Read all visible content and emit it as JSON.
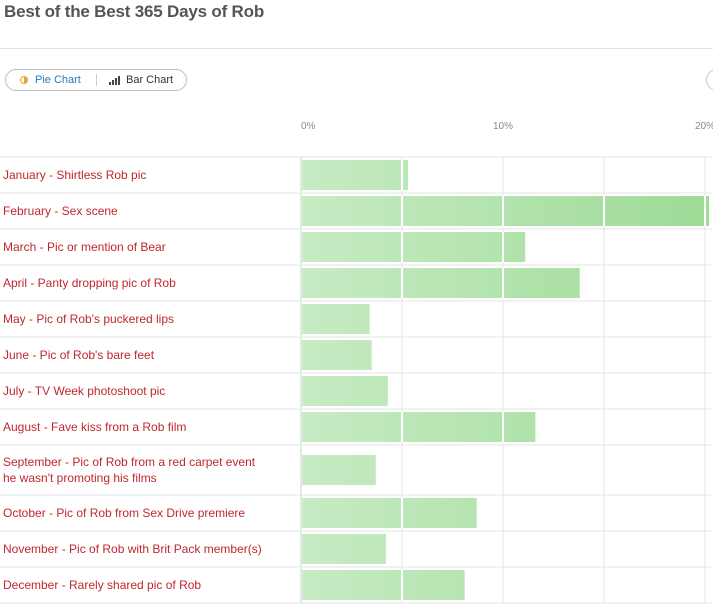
{
  "page": {
    "title": "Best of the Best 365 Days of Rob"
  },
  "toggle": {
    "pie_label": "Pie Chart",
    "bar_label": "Bar Chart"
  },
  "chart_data": {
    "type": "bar",
    "orientation": "horizontal",
    "categories": [
      "January - Shirtless Rob pic",
      "February - Sex scene",
      "March - Pic or mention of Bear",
      "April - Panty dropping pic of Rob",
      "May - Pic of Rob's puckered lips",
      "June - Pic of Rob's bare feet",
      "July - TV Week photoshoot pic",
      "August - Fave kiss from a Rob film",
      "September - Pic of Rob from a red carpet event he wasn't promoting his films",
      "October - Pic of Rob from Sex Drive premiere",
      "November - Pic of Rob with Brit Pack member(s)",
      "December - Rarely shared pic of Rob"
    ],
    "values": [
      5.3,
      20.2,
      11.1,
      13.8,
      3.4,
      3.5,
      4.3,
      11.6,
      3.7,
      8.7,
      4.2,
      8.1
    ],
    "xlim": [
      0,
      20
    ],
    "ticks": [
      0,
      10,
      20
    ],
    "tick_labels": [
      "0%",
      "10%",
      "20%"
    ],
    "grid": true,
    "colors": {
      "bar_light": "#c7ebc4",
      "bar_dark": "#9edb96",
      "label": "#c0272d",
      "grid": "#e4e4e4"
    }
  }
}
